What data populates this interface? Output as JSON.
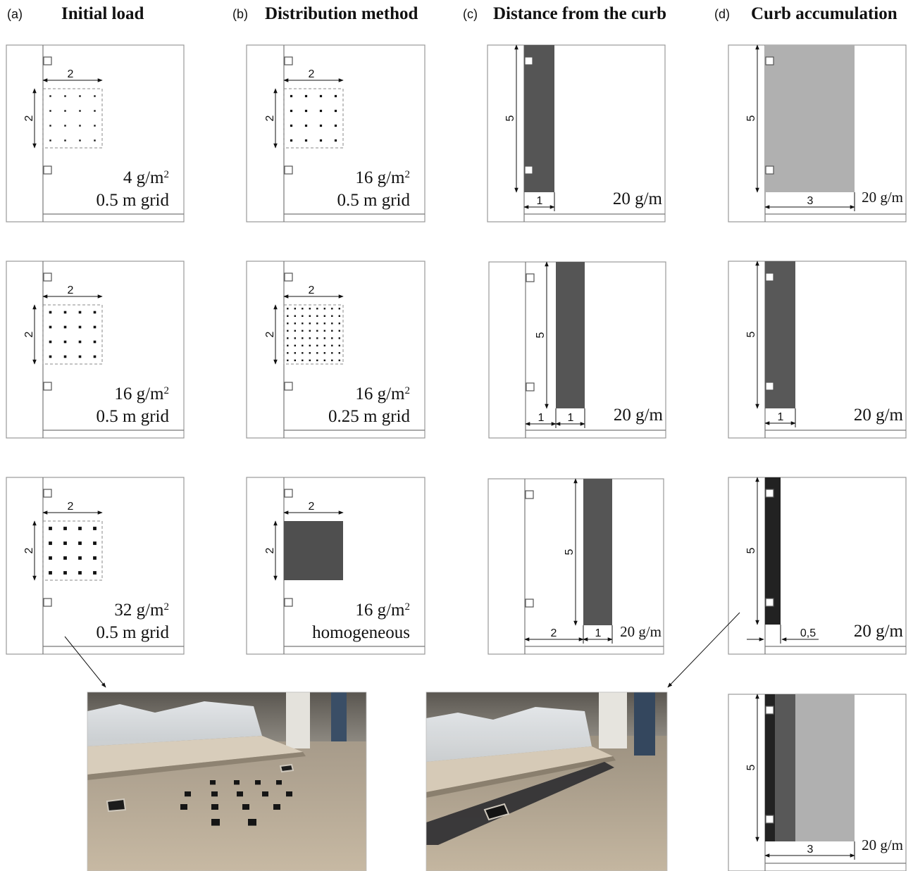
{
  "figure": {
    "columns": [
      {
        "letter": "(a)",
        "title": "Initial load"
      },
      {
        "letter": "(b)",
        "title": "Distribution method"
      },
      {
        "letter": "(c)",
        "title": "Distance from the curb"
      },
      {
        "letter": "(d)",
        "title": "Curb accumulation"
      }
    ],
    "panels": {
      "a1": {
        "dim_w": "2",
        "dim_h": "2",
        "line1": "4 g/m",
        "line1_sup": "2",
        "line2": "0.5 m grid",
        "dot_spacing_m": 0.5,
        "dot_size": "small"
      },
      "a2": {
        "dim_w": "2",
        "dim_h": "2",
        "line1": "16 g/m",
        "line1_sup": "2",
        "line2": "0.5 m grid",
        "dot_spacing_m": 0.5,
        "dot_size": "medium"
      },
      "a3": {
        "dim_w": "2",
        "dim_h": "2",
        "line1": "32 g/m",
        "line1_sup": "2",
        "line2": "0.5 m grid",
        "dot_spacing_m": 0.5,
        "dot_size": "large"
      },
      "b1": {
        "dim_w": "2",
        "dim_h": "2",
        "line1": "16 g/m",
        "line1_sup": "2",
        "line2": "0.5 m grid",
        "dot_spacing_m": 0.5
      },
      "b2": {
        "dim_w": "2",
        "dim_h": "2",
        "line1": "16 g/m",
        "line1_sup": "2",
        "line2": "0.25 m grid",
        "dot_spacing_m": 0.25
      },
      "b3": {
        "dim_w": "2",
        "dim_h": "2",
        "line1": "16 g/m",
        "line1_sup": "2",
        "line2": "homogeneous"
      },
      "c1": {
        "dim_h": "5",
        "dim_gap": "",
        "dim_w": "1",
        "label": "20 g/m"
      },
      "c2": {
        "dim_h": "5",
        "dim_gap": "1",
        "dim_w": "1",
        "label": "20 g/m"
      },
      "c3": {
        "dim_h": "5",
        "dim_gap": "2",
        "dim_w": "1",
        "label": "20 g/m"
      },
      "d1": {
        "dim_h": "5",
        "dim_w": "3",
        "label": "20 g/m"
      },
      "d2": {
        "dim_h": "5",
        "dim_w": "1",
        "label": "20 g/m"
      },
      "d3": {
        "dim_h": "5",
        "dim_w": "0,5",
        "label": "20 g/m"
      },
      "d4": {
        "dim_h": "5",
        "dim_w": "3",
        "label": "20 g/m"
      }
    },
    "colors": {
      "frame": "#999999",
      "band_c": "#555555",
      "band_d_wide": "#b0b0b0",
      "band_d_medium": "#585858",
      "band_d_narrow": "#222222",
      "homogeneous": "#4f4f4f"
    },
    "photos": {
      "left": {
        "depicts": "grid-of-dark-patches-on-test-surface"
      },
      "right": {
        "depicts": "dark-strip-along-curb-on-test-surface"
      }
    }
  }
}
